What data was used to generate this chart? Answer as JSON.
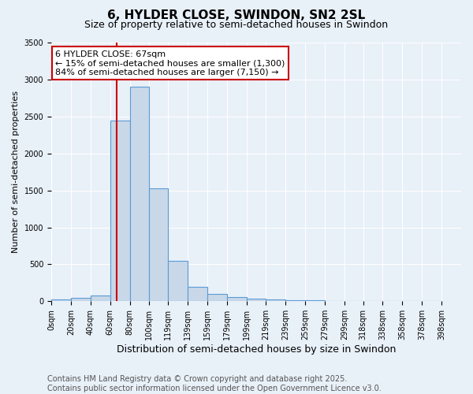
{
  "title": "6, HYLDER CLOSE, SWINDON, SN2 2SL",
  "subtitle": "Size of property relative to semi-detached houses in Swindon",
  "xlabel": "Distribution of semi-detached houses by size in Swindon",
  "ylabel": "Number of semi-detached properties",
  "bin_labels": [
    "0sqm",
    "20sqm",
    "40sqm",
    "60sqm",
    "80sqm",
    "100sqm",
    "119sqm",
    "139sqm",
    "159sqm",
    "179sqm",
    "199sqm",
    "219sqm",
    "239sqm",
    "259sqm",
    "279sqm",
    "299sqm",
    "318sqm",
    "338sqm",
    "358sqm",
    "378sqm",
    "398sqm"
  ],
  "bin_edges": [
    0,
    20,
    40,
    60,
    80,
    100,
    119,
    139,
    159,
    179,
    199,
    219,
    239,
    259,
    279,
    299,
    318,
    338,
    358,
    378,
    398
  ],
  "bar_heights": [
    20,
    50,
    80,
    2450,
    2900,
    1525,
    550,
    200,
    100,
    60,
    35,
    25,
    15,
    10,
    5,
    3,
    2,
    1,
    1,
    0
  ],
  "bar_color": "#c8d8e8",
  "bar_edge_color": "#5b9bd5",
  "property_size": 67,
  "red_line_color": "#cc0000",
  "annotation_line1": "6 HYLDER CLOSE: 67sqm",
  "annotation_line2": "← 15% of semi-detached houses are smaller (1,300)",
  "annotation_line3": "84% of semi-detached houses are larger (7,150) →",
  "annotation_box_color": "#ffffff",
  "annotation_box_edge_color": "#cc0000",
  "ylim": [
    0,
    3500
  ],
  "yticks": [
    0,
    500,
    1000,
    1500,
    2000,
    2500,
    3000,
    3500
  ],
  "background_color": "#e8f0f8",
  "footer_line1": "Contains HM Land Registry data © Crown copyright and database right 2025.",
  "footer_line2": "Contains public sector information licensed under the Open Government Licence v3.0.",
  "title_fontsize": 11,
  "subtitle_fontsize": 9,
  "xlabel_fontsize": 9,
  "ylabel_fontsize": 8,
  "tick_fontsize": 7,
  "annot_fontsize": 8,
  "footer_fontsize": 7
}
